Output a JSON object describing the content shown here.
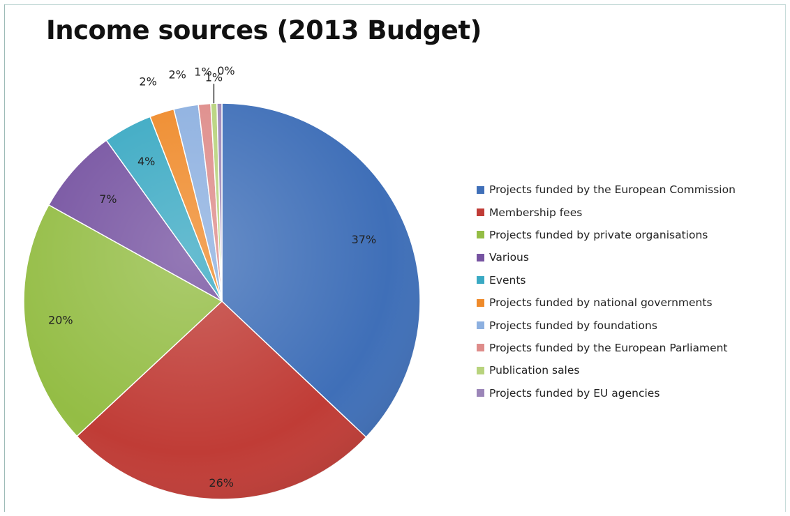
{
  "chart_data": {
    "type": "pie",
    "title": "Income sources (2013 Budget)",
    "legend_position": "right",
    "slices": [
      {
        "label": "Projects funded by the European Commission",
        "value": 37,
        "display": "37%",
        "color": "#3f6fb8"
      },
      {
        "label": "Membership fees",
        "value": 26,
        "display": "26%",
        "color": "#c03c36"
      },
      {
        "label": "Projects funded by private organisations",
        "value": 20,
        "display": "20%",
        "color": "#94bd45"
      },
      {
        "label": "Various",
        "value": 7,
        "display": "7%",
        "color": "#7653a1"
      },
      {
        "label": "Events",
        "value": 4,
        "display": "4%",
        "color": "#3aa9c3"
      },
      {
        "label": "Projects funded by national governments",
        "value": 2,
        "display": "2%",
        "color": "#ef8a2a"
      },
      {
        "label": "Projects funded by foundations",
        "value": 2,
        "display": "2%",
        "color": "#8db0e0"
      },
      {
        "label": "Projects funded by the European Parliament",
        "value": 1,
        "display": "1%",
        "color": "#de8c8a"
      },
      {
        "label": "Publication sales",
        "value": 0.5,
        "display": "1%",
        "color": "#b8d37d"
      },
      {
        "label": "Projects funded by EU agencies",
        "value": 0.4,
        "display": "0%",
        "color": "#9b85b8"
      }
    ]
  }
}
